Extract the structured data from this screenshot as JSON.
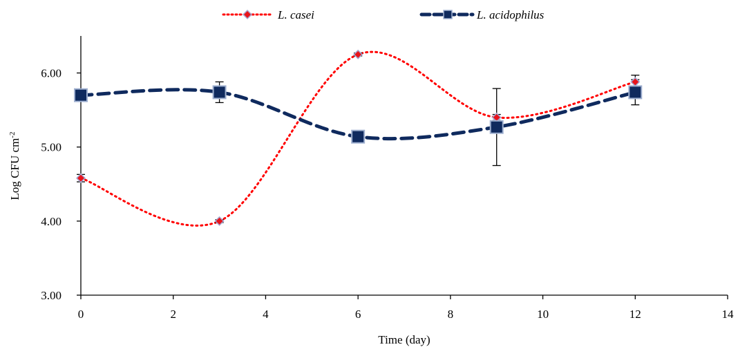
{
  "chart_data": {
    "type": "line",
    "xlabel": "Time (day)",
    "ylabel": "Log CFU cm",
    "ylabel_superscript": "-2",
    "xlim": [
      0,
      14
    ],
    "ylim": [
      3,
      6.5
    ],
    "xticks": [
      0,
      2,
      4,
      6,
      8,
      10,
      12,
      14
    ],
    "xtick_labels": [
      "0",
      "2",
      "4",
      "6",
      "8",
      "10",
      "12",
      "14"
    ],
    "yticks": [
      3,
      4,
      5,
      6
    ],
    "ytick_labels": [
      "3.00",
      "4.00",
      "5.00",
      "6.00"
    ],
    "grid": false,
    "legend_position": "top-center",
    "series": [
      {
        "name": "L. casei",
        "marker": "diamond",
        "line_style": "dotted",
        "color": "#ff0000",
        "marker_fill": "#e8141b",
        "marker_edge": "#a6a6d0",
        "x": [
          0,
          3,
          6,
          9,
          12
        ],
        "y": [
          4.58,
          4.0,
          6.25,
          5.4,
          5.88
        ],
        "err": [
          0.05,
          0.02,
          0.02,
          0.04,
          0.09
        ]
      },
      {
        "name": "L. acidophilus",
        "marker": "square",
        "line_style": "dashed",
        "color": "#0f2a5e",
        "marker_fill": "#0f2a5e",
        "marker_edge": "#9fb0d0",
        "x": [
          0,
          3,
          6,
          9,
          12
        ],
        "y": [
          5.7,
          5.74,
          5.14,
          5.27,
          5.74
        ],
        "err": [
          0.05,
          0.14,
          0.05,
          0.52,
          0.17
        ]
      }
    ]
  }
}
